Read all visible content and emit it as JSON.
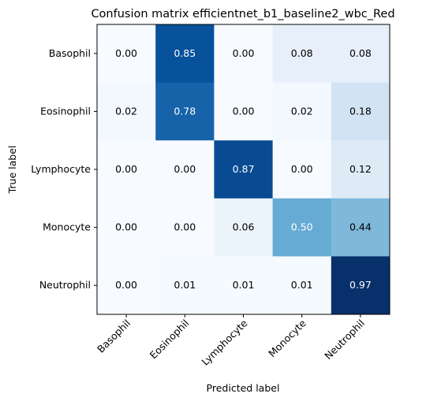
{
  "chart_data": {
    "type": "heatmap",
    "title": "Confusion matrix efficientnet_b1_baseline2_wbc_Red",
    "xlabel": "Predicted label",
    "ylabel": "True label",
    "x_categories": [
      "Basophil",
      "Eosinophil",
      "Lymphocyte",
      "Monocyte",
      "Neutrophil"
    ],
    "y_categories": [
      "Basophil",
      "Eosinophil",
      "Lymphocyte",
      "Monocyte",
      "Neutrophil"
    ],
    "values": [
      [
        0.0,
        0.85,
        0.0,
        0.08,
        0.08
      ],
      [
        0.02,
        0.78,
        0.0,
        0.02,
        0.18
      ],
      [
        0.0,
        0.0,
        0.87,
        0.0,
        0.12
      ],
      [
        0.0,
        0.0,
        0.06,
        0.5,
        0.44
      ],
      [
        0.0,
        0.01,
        0.01,
        0.01,
        0.97
      ]
    ],
    "value_format": "0.00",
    "colormap": "Blues",
    "color_range": [
      0,
      1
    ],
    "grid": false
  }
}
